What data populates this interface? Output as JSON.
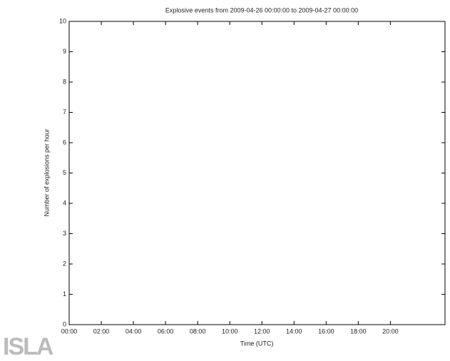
{
  "chart_data": {
    "type": "bar",
    "title": "Explosive events from 2009-04-26 00:00:00 to 2009-04-27 00:00:00",
    "x_label": "Time (UTC)",
    "y_label": "Number of explosions per hour",
    "series": [],
    "xlim": [
      0,
      23.4
    ],
    "xticks": [
      {
        "value": 0,
        "label": "00:00"
      },
      {
        "value": 2,
        "label": "02:00"
      },
      {
        "value": 4,
        "label": "04:00"
      },
      {
        "value": 6,
        "label": "06:00"
      },
      {
        "value": 8,
        "label": "08:00"
      },
      {
        "value": 10,
        "label": "10:00"
      },
      {
        "value": 12,
        "label": "12:00"
      },
      {
        "value": 14,
        "label": "14:00"
      },
      {
        "value": 16,
        "label": "16:00"
      },
      {
        "value": 18,
        "label": "18:00"
      },
      {
        "value": 20,
        "label": "20:00"
      }
    ],
    "ylim": [
      0,
      10
    ],
    "yticks": [
      0,
      1,
      2,
      3,
      4,
      5,
      6,
      7,
      8,
      9,
      10
    ],
    "grid": false,
    "logo": "ISLA"
  }
}
